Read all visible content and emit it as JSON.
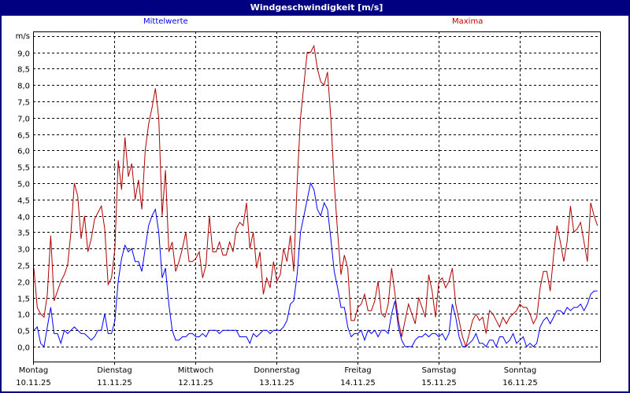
{
  "window": {
    "title": "Windgeschwindigkeit [m/s]"
  },
  "legend": {
    "mean": "Mittelwerte",
    "max": "Maxima"
  },
  "colors": {
    "titlebar": "#000080",
    "mean": "#0000ff",
    "max": "#b00000",
    "grid": "#000000"
  },
  "chart_data": {
    "type": "line",
    "title": "Windgeschwindigkeit [m/s]",
    "xlabel": "",
    "ylabel": "m/s",
    "ylim": [
      0,
      9.5
    ],
    "yticks": [
      "0,0",
      "0,5",
      "1,0",
      "1,5",
      "2,0",
      "2,5",
      "3,0",
      "3,5",
      "4,0",
      "4,5",
      "5,0",
      "5,5",
      "6,0",
      "6,5",
      "7,0",
      "7,5",
      "8,0",
      "8,5",
      "9,0"
    ],
    "grid": true,
    "legend_position": "top",
    "categories": [
      {
        "day": "Montag",
        "date": "10.11.25"
      },
      {
        "day": "Dienstag",
        "date": "11.11.25"
      },
      {
        "day": "Mittwoch",
        "date": "12.11.25"
      },
      {
        "day": "Donnerstag",
        "date": "13.11.25"
      },
      {
        "day": "Freitag",
        "date": "14.11.25"
      },
      {
        "day": "Samstag",
        "date": "15.11.25"
      },
      {
        "day": "Sonntag",
        "date": "16.11.25"
      }
    ],
    "x_unit": "hour index (24 per day)",
    "series": [
      {
        "name": "Maxima",
        "color": "#b00000",
        "values": [
          2.4,
          1.2,
          1.0,
          0.9,
          1.6,
          3.4,
          1.4,
          1.7,
          2.0,
          2.2,
          2.5,
          3.5,
          5.0,
          4.6,
          3.3,
          4.0,
          2.9,
          3.3,
          3.9,
          4.1,
          4.3,
          3.6,
          1.9,
          2.1,
          3.0,
          5.7,
          4.8,
          6.4,
          5.2,
          5.6,
          4.5,
          5.1,
          4.2,
          6.0,
          6.8,
          7.3,
          7.9,
          7.0,
          4.0,
          5.4,
          2.9,
          3.2,
          2.3,
          2.6,
          3.0,
          3.5,
          2.6,
          2.6,
          2.7,
          2.9,
          2.1,
          2.5,
          4.0,
          2.9,
          2.9,
          3.2,
          2.8,
          2.8,
          3.2,
          2.9,
          3.6,
          3.8,
          3.7,
          4.4,
          3.0,
          3.5,
          2.4,
          2.9,
          1.6,
          2.1,
          1.8,
          2.6,
          2.0,
          2.2,
          3.0,
          2.6,
          3.4,
          2.3,
          5.0,
          7.0,
          8.0,
          9.0,
          9.0,
          9.2,
          8.5,
          8.1,
          8.0,
          8.4,
          7.0,
          5.0,
          3.5,
          2.2,
          2.8,
          2.4,
          0.8,
          0.8,
          1.2,
          1.3,
          1.6,
          1.1,
          1.1,
          1.4,
          2.0,
          1.0,
          0.9,
          1.3,
          2.4,
          1.6,
          0.8,
          0.3,
          0.8,
          1.3,
          1.0,
          0.7,
          1.5,
          1.2,
          0.9,
          2.2,
          1.7,
          0.9,
          2.0,
          2.1,
          1.8,
          2.0,
          2.4,
          1.3,
          0.8,
          0.3,
          0.0,
          0.4,
          0.8,
          1.0,
          0.8,
          0.9,
          0.4,
          1.1,
          1.0,
          0.8,
          0.6,
          0.9,
          0.7,
          0.9,
          1.0,
          1.1,
          1.3,
          1.2,
          1.2,
          1.0,
          0.7,
          0.9,
          1.8,
          2.3,
          2.3,
          1.7,
          2.8,
          3.7,
          3.2,
          2.6,
          3.2,
          4.3,
          3.5,
          3.6,
          3.8,
          3.2,
          2.6,
          4.4,
          4.0,
          3.7
        ]
      },
      {
        "name": "Mittelwerte",
        "color": "#0000ff",
        "values": [
          0.5,
          0.6,
          0.1,
          0.0,
          0.6,
          1.2,
          0.4,
          0.4,
          0.1,
          0.5,
          0.4,
          0.5,
          0.6,
          0.5,
          0.4,
          0.4,
          0.3,
          0.2,
          0.3,
          0.5,
          0.5,
          1.0,
          0.4,
          0.4,
          0.8,
          2.0,
          2.7,
          3.1,
          2.9,
          3.0,
          2.6,
          2.6,
          2.3,
          3.0,
          3.7,
          4.0,
          4.2,
          3.5,
          2.1,
          2.4,
          1.3,
          0.5,
          0.2,
          0.2,
          0.3,
          0.3,
          0.4,
          0.4,
          0.3,
          0.3,
          0.4,
          0.3,
          0.5,
          0.5,
          0.5,
          0.4,
          0.5,
          0.5,
          0.5,
          0.5,
          0.5,
          0.3,
          0.3,
          0.3,
          0.1,
          0.4,
          0.3,
          0.4,
          0.5,
          0.5,
          0.4,
          0.5,
          0.5,
          0.5,
          0.6,
          0.8,
          1.3,
          1.4,
          2.2,
          3.5,
          4.0,
          4.5,
          5.0,
          4.8,
          4.2,
          4.0,
          4.4,
          4.2,
          3.3,
          2.3,
          1.8,
          1.2,
          1.2,
          0.6,
          0.3,
          0.4,
          0.4,
          0.5,
          0.2,
          0.5,
          0.4,
          0.5,
          0.3,
          0.5,
          0.5,
          0.4,
          1.0,
          1.4,
          0.6,
          0.2,
          0.0,
          0.0,
          0.0,
          0.2,
          0.3,
          0.3,
          0.4,
          0.3,
          0.4,
          0.4,
          0.3,
          0.4,
          0.2,
          0.4,
          1.3,
          0.9,
          0.3,
          0.0,
          0.0,
          0.1,
          0.2,
          0.4,
          0.1,
          0.1,
          0.0,
          0.2,
          0.2,
          0.0,
          0.3,
          0.3,
          0.1,
          0.2,
          0.4,
          0.1,
          0.2,
          0.3,
          0.0,
          0.1,
          0.0,
          0.1,
          0.6,
          0.8,
          0.9,
          0.7,
          0.9,
          1.1,
          1.1,
          1.0,
          1.2,
          1.1,
          1.2,
          1.2,
          1.3,
          1.1,
          1.3,
          1.6,
          1.7,
          1.7
        ]
      }
    ]
  }
}
